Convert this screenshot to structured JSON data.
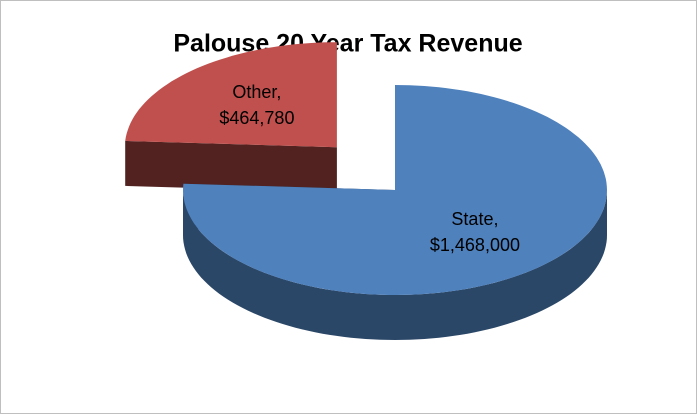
{
  "chart_data": {
    "type": "pie3d",
    "title": "Palouse 20 Year Tax Revenue",
    "categories": [
      "State,",
      "Other,"
    ],
    "values": [
      1468000,
      464780
    ],
    "value_labels": [
      "$1,468,000",
      "$464,780"
    ],
    "colors": [
      "#4f81bd",
      "#c0504d"
    ],
    "exploded": [
      false,
      true
    ]
  }
}
